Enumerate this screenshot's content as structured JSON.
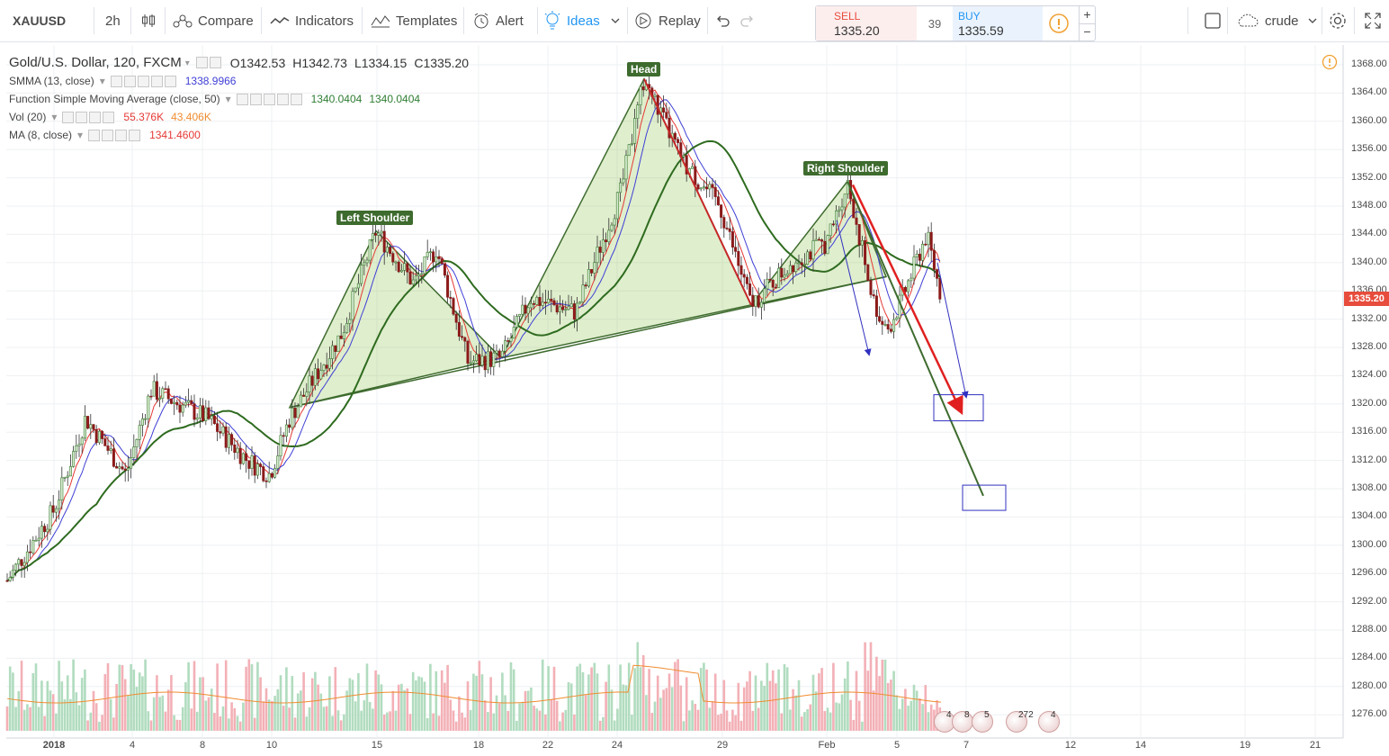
{
  "toolbar": {
    "symbol": "XAUUSD",
    "interval": "2h",
    "compare": "Compare",
    "indicators": "Indicators",
    "templates": "Templates",
    "alert": "Alert",
    "ideas": "Ideas",
    "replay": "Replay",
    "sell_label": "SELL",
    "sell_price": "1335.20",
    "spread": "39",
    "buy_label": "BUY",
    "buy_price": "1335.59",
    "layout_name": "crude",
    "accent_color": "#2196f3",
    "sell_color": "#e74c3c",
    "buy_color": "#2196f3"
  },
  "legend": {
    "main_title": "Gold/U.S. Dollar, 120, FXCM",
    "open": "O1342.53",
    "high": "H1342.73",
    "low": "L1334.15",
    "close": "C1335.20",
    "smma_label": "SMMA (13, close)",
    "smma_value": "1338.9966",
    "sma_label": "Function Simple Moving Average (close, 50)",
    "sma_value1": "1340.0404",
    "sma_value2": "1340.0404",
    "vol_label": "Vol (20)",
    "vol_value1": "55.376K",
    "vol_value2": "43.406K",
    "ma_label": "MA (8, close)",
    "ma_value": "1341.4600"
  },
  "price_axis": [
    "1368.00",
    "1364.00",
    "1360.00",
    "1356.00",
    "1352.00",
    "1348.00",
    "1344.00",
    "1340.00",
    "1336.00",
    "1332.00",
    "1328.00",
    "1324.00",
    "1320.00",
    "1316.00",
    "1312.00",
    "1308.00",
    "1304.00",
    "1300.00",
    "1296.00",
    "1292.00",
    "1288.00",
    "1284.00",
    "1280.00",
    "1276.00"
  ],
  "current_price": "1335.20",
  "time_axis": [
    "2018",
    "4",
    "8",
    "10",
    "15",
    "18",
    "22",
    "24",
    "29",
    "Feb",
    "5",
    "7",
    "12",
    "14",
    "19",
    "21"
  ],
  "pattern_labels": {
    "head": "Head",
    "left_shoulder": "Left Shoulder",
    "right_shoulder": "Right Shoulder"
  },
  "event_badges": [
    "4",
    "8",
    "5",
    "272",
    "4"
  ],
  "chart_data": {
    "type": "candlestick",
    "symbol": "Gold/U.S. Dollar",
    "interval": "120",
    "y_range": [
      1274,
      1370
    ],
    "last": {
      "open": 1342.53,
      "high": 1342.73,
      "low": 1334.15,
      "close": 1335.2
    },
    "indicators": [
      {
        "name": "SMMA (13, close)",
        "value": 1338.9966,
        "color": "#3f3fd6"
      },
      {
        "name": "Function Simple Moving Average (close, 50)",
        "value": 1340.0404,
        "color": "#2e6b1f"
      },
      {
        "name": "MA (8, close)",
        "value": 1341.46,
        "color": "#e53935"
      },
      {
        "name": "Vol (20)",
        "value": "55.376K",
        "ma": "43.406K"
      }
    ],
    "pattern": {
      "left_shoulder_price": 1344.5,
      "head_price": 1366,
      "right_shoulder_price": 1351.5
    },
    "grid": true,
    "up_color": "#4caf50",
    "down_color": "#b71c1c"
  }
}
